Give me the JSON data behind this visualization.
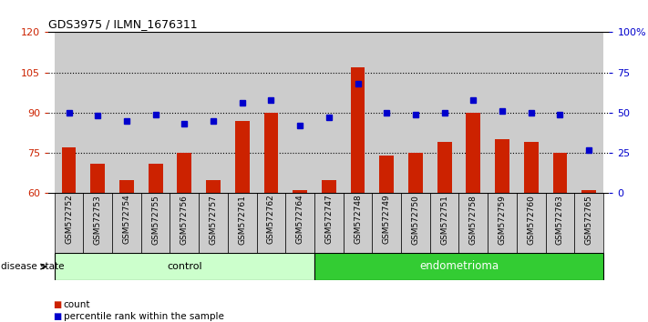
{
  "title": "GDS3975 / ILMN_1676311",
  "samples": [
    "GSM572752",
    "GSM572753",
    "GSM572754",
    "GSM572755",
    "GSM572756",
    "GSM572757",
    "GSM572761",
    "GSM572762",
    "GSM572764",
    "GSM572747",
    "GSM572748",
    "GSM572749",
    "GSM572750",
    "GSM572751",
    "GSM572758",
    "GSM572759",
    "GSM572760",
    "GSM572763",
    "GSM572765"
  ],
  "count_values": [
    77,
    71,
    65,
    71,
    75,
    65,
    87,
    90,
    61,
    65,
    107,
    74,
    75,
    79,
    90,
    80,
    79,
    75,
    61
  ],
  "percentile_values": [
    50,
    48,
    45,
    49,
    43,
    45,
    56,
    58,
    42,
    47,
    68,
    50,
    49,
    50,
    58,
    51,
    50,
    49,
    27
  ],
  "control_count": 9,
  "endometrioma_count": 10,
  "left_ylim": [
    60,
    120
  ],
  "right_ylim": [
    0,
    100
  ],
  "left_yticks": [
    60,
    75,
    90,
    105,
    120
  ],
  "right_yticks": [
    0,
    25,
    50,
    75,
    100
  ],
  "right_yticklabels": [
    "0",
    "25",
    "50",
    "75",
    "100%"
  ],
  "bar_color": "#cc2200",
  "dot_color": "#0000cc",
  "bar_width": 0.5,
  "control_label": "control",
  "endometrioma_label": "endometrioma",
  "disease_state_label": "disease state",
  "legend_count_label": "count",
  "legend_percentile_label": "percentile rank within the sample",
  "control_bg": "#ccffcc",
  "endometrioma_bg": "#33cc33",
  "sample_bg": "#cccccc",
  "hline_vals": [
    75,
    90,
    105
  ]
}
